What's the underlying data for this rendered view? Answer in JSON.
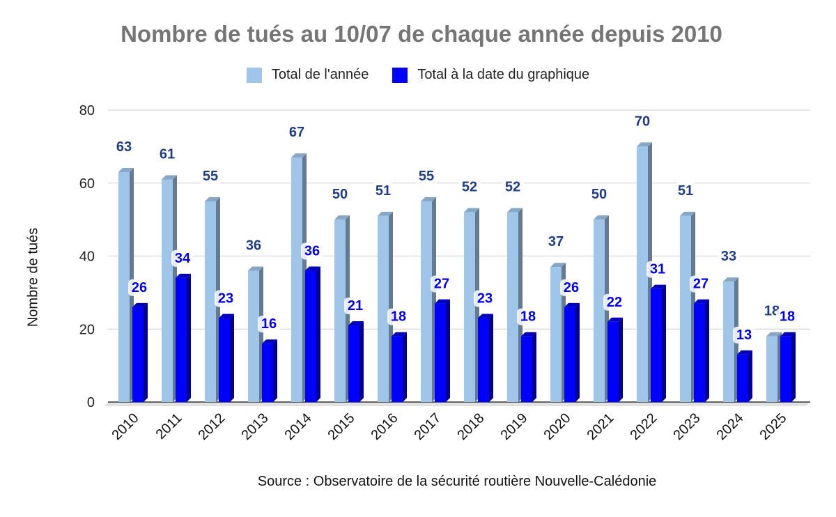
{
  "chart_data": {
    "type": "bar",
    "title": "Nombre de tués au 10/07 de chaque année depuis 2010",
    "ylabel": "Nombre de tués",
    "xlabel": "",
    "source": "Source : Observatoire de la sécurité routière Nouvelle-Calédonie",
    "ylim": [
      0,
      80
    ],
    "yticks": [
      "0",
      "20",
      "40",
      "60",
      "80"
    ],
    "grid": true,
    "legend_position": "top-center",
    "categories": [
      "2010",
      "2011",
      "2012",
      "2013",
      "2014",
      "2015",
      "2016",
      "2017",
      "2018",
      "2019",
      "2020",
      "2021",
      "2022",
      "2023",
      "2024",
      "2025"
    ],
    "series": [
      {
        "name": "Total de l'année",
        "color": "#9fc5e8",
        "label_color": "#1f3c88",
        "values": [
          63,
          61,
          55,
          36,
          67,
          50,
          51,
          55,
          52,
          52,
          37,
          50,
          70,
          51,
          33,
          18
        ]
      },
      {
        "name": "Total à la date du graphique",
        "color": "#0000ff",
        "label_color": "#0000ee",
        "values": [
          26,
          34,
          23,
          16,
          36,
          21,
          18,
          27,
          23,
          18,
          26,
          22,
          31,
          27,
          13,
          18
        ]
      }
    ]
  }
}
